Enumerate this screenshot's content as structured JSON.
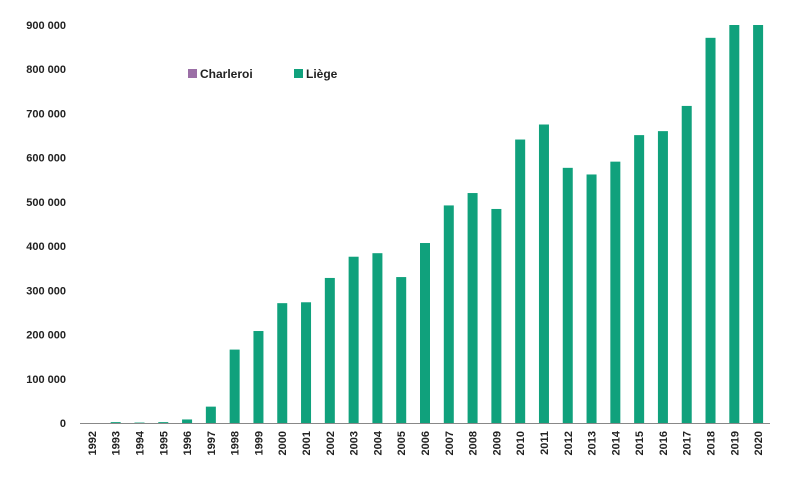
{
  "chart_data": {
    "type": "bar",
    "categories": [
      "1992",
      "1993",
      "1994",
      "1995",
      "1996",
      "1997",
      "1998",
      "1999",
      "2000",
      "2001",
      "2002",
      "2003",
      "2004",
      "2005",
      "2006",
      "2007",
      "2008",
      "2009",
      "2010",
      "2011",
      "2012",
      "2013",
      "2014",
      "2015",
      "2016",
      "2017",
      "2018",
      "2019",
      "2020"
    ],
    "series": [
      {
        "name": "Charleroi",
        "color": "#9b6fa6",
        "values": [
          0,
          0,
          0,
          0,
          0,
          0,
          0,
          0,
          0,
          0,
          0,
          0,
          0,
          0,
          0,
          0,
          0,
          0,
          0,
          0,
          0,
          0,
          0,
          0,
          0,
          0,
          0,
          0,
          0
        ]
      },
      {
        "name": "Liège",
        "color": "#10a17c",
        "values": [
          0,
          2000,
          1000,
          2000,
          8000,
          37000,
          166000,
          208000,
          271000,
          273000,
          328000,
          376000,
          384000,
          330000,
          407000,
          492000,
          520000,
          484000,
          641000,
          675000,
          577000,
          562000,
          591000,
          651000,
          660000,
          717000,
          871000,
          900000,
          900000
        ]
      }
    ],
    "y_ticks": [
      "0",
      "100 000",
      "200 000",
      "300 000",
      "400 000",
      "500 000",
      "600 000",
      "700 000",
      "800 000",
      "900 000"
    ],
    "ylim": [
      0,
      900000
    ],
    "legend_position": "top-left",
    "grid": false
  }
}
